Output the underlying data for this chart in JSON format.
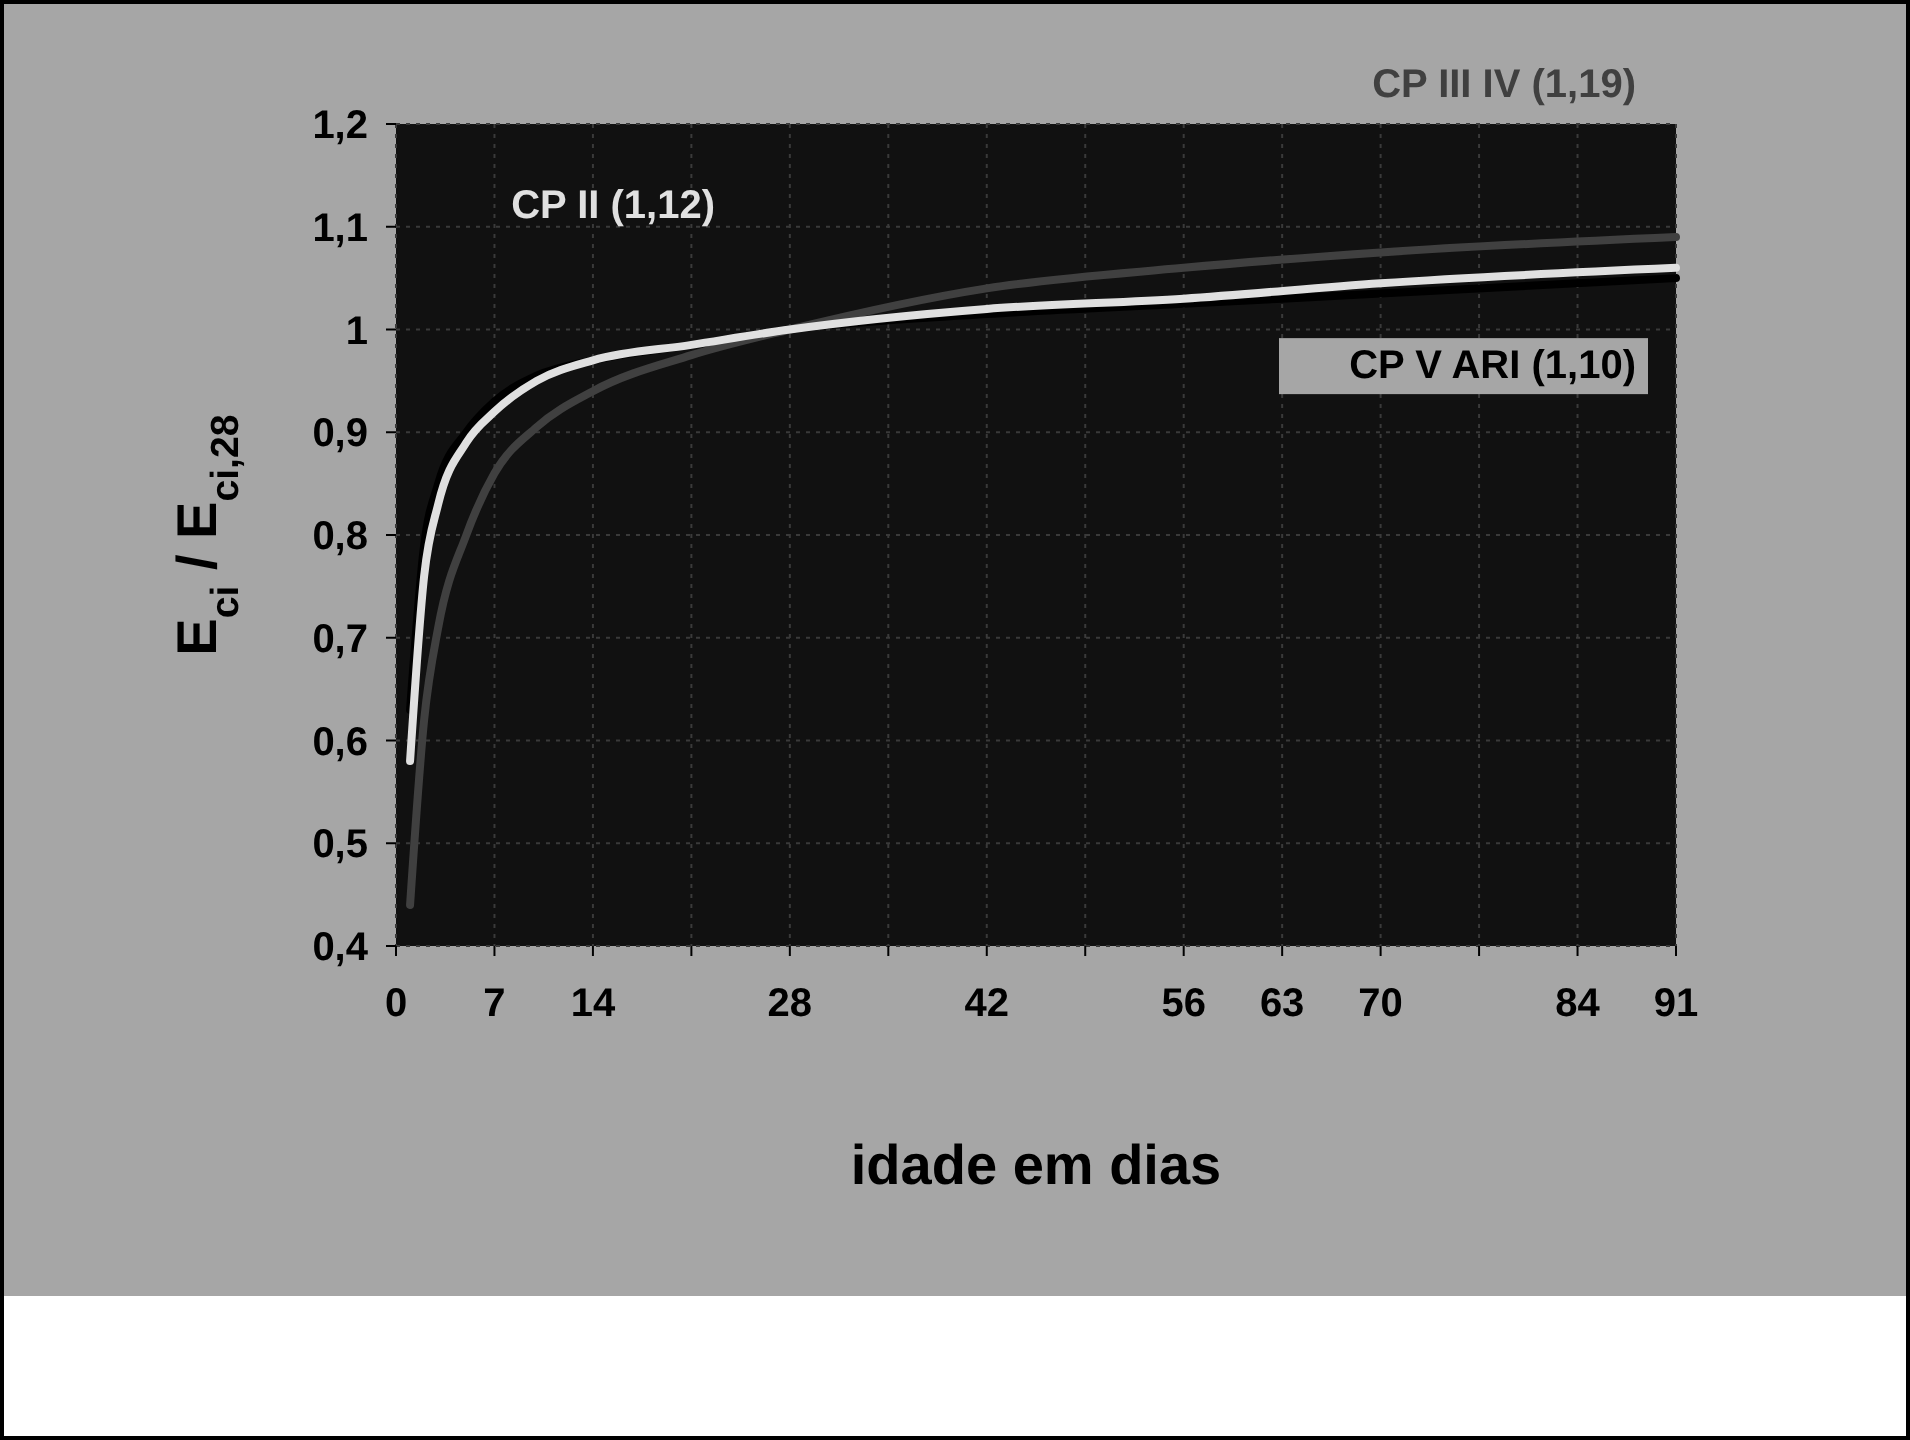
{
  "chart_data": {
    "type": "line",
    "xlabel": "idade em dias",
    "ylabel": "E$_{ci}$ / E$_{ci,28}$",
    "xlim": [
      0,
      91
    ],
    "ylim": [
      0.4,
      1.2
    ],
    "xticks": [
      0,
      7,
      14,
      {
        "value": 21,
        "label": null
      },
      28,
      {
        "value": 35,
        "label": null
      },
      42,
      {
        "value": 49,
        "label": null
      },
      56,
      63,
      70,
      {
        "value": 77,
        "label": null
      },
      84,
      91
    ],
    "yticks": [
      {
        "value": 0.4,
        "label": "0,4"
      },
      {
        "value": 0.5,
        "label": "0,5"
      },
      {
        "value": 0.6,
        "label": "0,6"
      },
      {
        "value": 0.7,
        "label": "0,7"
      },
      {
        "value": 0.8,
        "label": "0,8"
      },
      {
        "value": 0.9,
        "label": "0,9"
      },
      1,
      {
        "value": 1.1,
        "label": "1,1"
      },
      {
        "value": 1.2,
        "label": "1,2"
      }
    ],
    "grid": true,
    "marker": "none",
    "line_style": "solid",
    "x": [
      1,
      2,
      3,
      5,
      7,
      10,
      14,
      21,
      28,
      42,
      56,
      70,
      91
    ],
    "series": [
      {
        "name": "CP V ARI (1,10)",
        "color": "#000000",
        "values": [
          0.63,
          0.79,
          0.85,
          0.9,
          0.93,
          0.955,
          0.97,
          0.985,
          1.0,
          1.015,
          1.025,
          1.035,
          1.05
        ]
      },
      {
        "name": "CP III IV (1,19)",
        "color": "#404040",
        "values": [
          0.44,
          0.62,
          0.71,
          0.8,
          0.86,
          0.905,
          0.94,
          0.975,
          1.0,
          1.04,
          1.06,
          1.075,
          1.09
        ]
      },
      {
        "name": "CP II (1,12)",
        "color": "#e0e0e0",
        "values": [
          0.58,
          0.76,
          0.83,
          0.89,
          0.92,
          0.95,
          0.97,
          0.985,
          1.0,
          1.02,
          1.03,
          1.045,
          1.06
        ]
      }
    ]
  }
}
